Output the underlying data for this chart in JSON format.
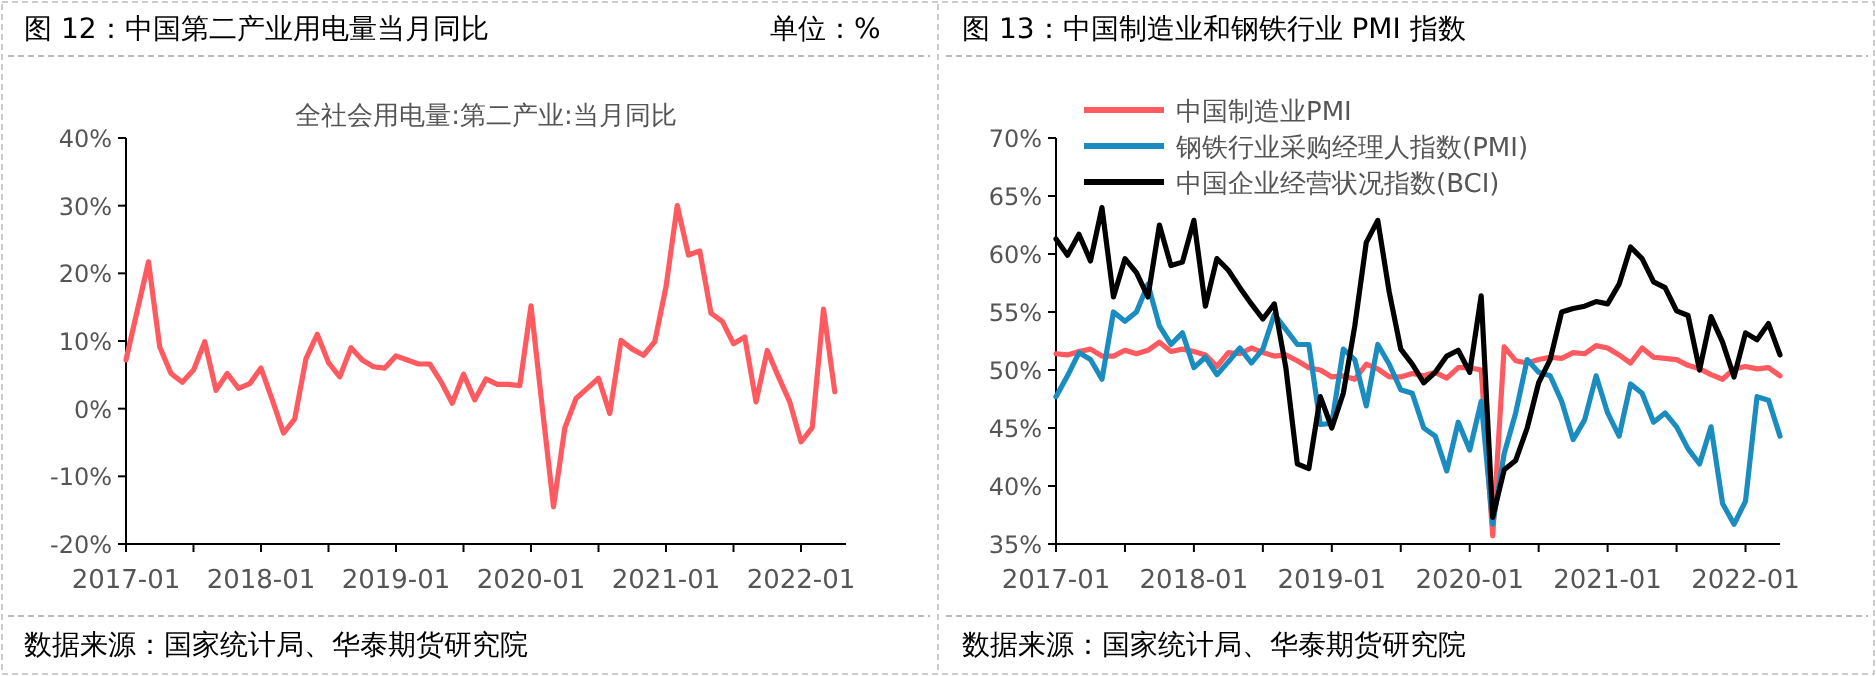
{
  "chart_data": [
    {
      "type": "line",
      "title": "图 12：中国第二产业用电量当月同比",
      "subtitle": "全社会用电量:第二产业:当月同比",
      "annotations": [
        "单位：%",
        "数据来源：国家统计局、华泰期货研究院"
      ],
      "x": [
        "2017-01",
        "2017-02",
        "2017-03",
        "2017-04",
        "2017-05",
        "2017-06",
        "2017-07",
        "2017-08",
        "2017-09",
        "2017-10",
        "2017-11",
        "2017-12",
        "2018-01",
        "2018-02",
        "2018-03",
        "2018-04",
        "2018-05",
        "2018-06",
        "2018-07",
        "2018-08",
        "2018-09",
        "2018-10",
        "2018-11",
        "2018-12",
        "2019-01",
        "2019-02",
        "2019-03",
        "2019-04",
        "2019-05",
        "2019-06",
        "2019-07",
        "2019-08",
        "2019-09",
        "2019-10",
        "2019-11",
        "2019-12",
        "2020-01",
        "2020-02",
        "2020-03",
        "2020-04",
        "2020-05",
        "2020-06",
        "2020-07",
        "2020-08",
        "2020-09",
        "2020-10",
        "2020-11",
        "2020-12",
        "2021-01",
        "2021-02",
        "2021-03",
        "2021-04",
        "2021-05",
        "2021-06",
        "2021-07",
        "2021-08",
        "2021-09",
        "2021-10",
        "2021-11",
        "2021-12",
        "2022-01",
        "2022-02",
        "2022-03",
        "2022-04"
      ],
      "series": [
        {
          "color": "#ff5a5f",
          "values": [
            7.2,
            14.5,
            21.7,
            9.1,
            5.2,
            3.9,
            5.7,
            9.9,
            2.7,
            5.2,
            3.0,
            3.7,
            6.0,
            1.3,
            -3.6,
            -1.5,
            7.4,
            11.0,
            6.8,
            4.7,
            9.0,
            7.2,
            6.2,
            6.0,
            7.8,
            7.2,
            6.6,
            6.6,
            4.0,
            0.8,
            5.1,
            1.3,
            4.4,
            3.6,
            3.6,
            3.4,
            15.2,
            0.2,
            -14.5,
            -2.9,
            1.5,
            3.0,
            4.5,
            -0.7,
            10.1,
            8.8,
            7.9,
            9.9,
            18.0,
            30.0,
            22.7,
            23.3,
            14.1,
            12.9,
            9.6,
            10.6,
            1.0,
            8.6,
            4.7,
            1.0,
            -4.9,
            -2.8,
            14.7,
            2.5
          ]
        }
      ],
      "xlim": [
        "2017-01",
        "2022-05"
      ],
      "xticks": [
        {
          "value": "2017-01",
          "label": "2017-01"
        },
        {
          "value": "2017-07",
          "label": null
        },
        {
          "value": "2018-01",
          "label": "2018-01"
        },
        {
          "value": "2018-07",
          "label": null
        },
        {
          "value": "2019-01",
          "label": "2019-01"
        },
        {
          "value": "2019-07",
          "label": null
        },
        {
          "value": "2020-01",
          "label": "2020-01"
        },
        {
          "value": "2020-07",
          "label": null
        },
        {
          "value": "2021-01",
          "label": "2021-01"
        },
        {
          "value": "2021-07",
          "label": null
        },
        {
          "value": "2022-01",
          "label": "2022-01"
        }
      ],
      "ylim": [
        -20,
        40
      ],
      "yticks": [
        {
          "value": -20,
          "label": "-20%"
        },
        {
          "value": -10,
          "label": "-10%"
        },
        {
          "value": 0,
          "label": "0%"
        },
        {
          "value": 10,
          "label": "10%"
        },
        {
          "value": 20,
          "label": "20%"
        },
        {
          "value": 30,
          "label": "30%"
        },
        {
          "value": 40,
          "label": "40%"
        }
      ],
      "grid": false,
      "legend": false
    },
    {
      "type": "line",
      "title": "图 13：中国制造业和钢铁行业 PMI 指数",
      "annotations": [
        "数据来源：国家统计局、华泰期货研究院"
      ],
      "x": [
        "2017-01",
        "2017-02",
        "2017-03",
        "2017-04",
        "2017-05",
        "2017-06",
        "2017-07",
        "2017-08",
        "2017-09",
        "2017-10",
        "2017-11",
        "2017-12",
        "2018-01",
        "2018-02",
        "2018-03",
        "2018-04",
        "2018-05",
        "2018-06",
        "2018-07",
        "2018-08",
        "2018-09",
        "2018-10",
        "2018-11",
        "2018-12",
        "2019-01",
        "2019-02",
        "2019-03",
        "2019-04",
        "2019-05",
        "2019-06",
        "2019-07",
        "2019-08",
        "2019-09",
        "2019-10",
        "2019-11",
        "2019-12",
        "2020-01",
        "2020-02",
        "2020-03",
        "2020-04",
        "2020-05",
        "2020-06",
        "2020-07",
        "2020-08",
        "2020-09",
        "2020-10",
        "2020-11",
        "2020-12",
        "2021-01",
        "2021-02",
        "2021-03",
        "2021-04",
        "2021-05",
        "2021-06",
        "2021-07",
        "2021-08",
        "2021-09",
        "2021-10",
        "2021-11",
        "2021-12",
        "2022-01",
        "2022-02",
        "2022-03",
        "2022-04"
      ],
      "series": [
        {
          "name": "中国制造业PMI",
          "color": "#ff5a5f",
          "values": [
            51.4,
            51.3,
            51.6,
            51.8,
            51.2,
            51.2,
            51.7,
            51.4,
            51.7,
            52.4,
            51.6,
            51.8,
            51.6,
            51.3,
            50.3,
            51.5,
            51.4,
            51.9,
            51.5,
            51.2,
            51.3,
            50.8,
            50.2,
            50.0,
            49.4,
            49.5,
            49.2,
            50.5,
            50.1,
            49.4,
            49.4,
            49.7,
            49.5,
            49.8,
            49.3,
            50.2,
            50.2,
            50.0,
            35.7,
            52.0,
            50.8,
            50.6,
            50.9,
            51.1,
            51.0,
            51.5,
            51.4,
            52.1,
            51.9,
            51.3,
            50.6,
            51.9,
            51.1,
            51.0,
            50.9,
            50.4,
            50.1,
            49.6,
            49.2,
            50.1,
            50.3,
            50.1,
            50.2,
            49.5
          ]
        },
        {
          "name": "钢铁行业采购经理人指数(PMI)",
          "color": "#1a8cbf",
          "values": [
            47.7,
            49.5,
            51.5,
            50.9,
            49.2,
            55.0,
            54.2,
            55.0,
            57.4,
            53.8,
            52.2,
            53.2,
            50.2,
            51.1,
            49.6,
            50.7,
            51.9,
            50.6,
            51.8,
            54.8,
            53.5,
            52.2,
            52.2,
            45.3,
            45.4,
            51.8,
            50.9,
            46.9,
            52.2,
            50.5,
            48.3,
            48.0,
            45.0,
            44.3,
            41.3,
            45.5,
            43.1,
            47.3,
            36.7,
            42.8,
            46.3,
            50.9,
            49.8,
            49.5,
            47.3,
            44.0,
            45.7,
            49.5,
            46.3,
            44.3,
            48.8,
            48.0,
            45.5,
            46.3,
            45.1,
            43.2,
            41.9,
            45.1,
            38.5,
            36.7,
            38.7,
            47.7,
            47.4,
            44.3
          ]
        },
        {
          "name": "中国企业经营状况指数(BCI)",
          "color": "#000000",
          "values": [
            61.3,
            59.9,
            61.7,
            59.4,
            64.0,
            56.3,
            59.6,
            58.4,
            56.3,
            62.5,
            59.0,
            59.3,
            62.9,
            55.5,
            59.6,
            58.6,
            57.1,
            55.7,
            54.4,
            55.7,
            50.2,
            41.9,
            41.5,
            47.7,
            45.0,
            48.0,
            53.8,
            61.0,
            62.9,
            56.7,
            51.8,
            50.5,
            48.9,
            49.8,
            51.2,
            51.7,
            49.8,
            56.4,
            37.3,
            41.4,
            42.2,
            45.0,
            48.9,
            50.9,
            55.0,
            55.3,
            55.5,
            55.9,
            55.7,
            57.4,
            60.6,
            59.6,
            57.6,
            57.1,
            55.1,
            54.7,
            50.0,
            54.6,
            52.4,
            49.4,
            53.2,
            52.6,
            54.0,
            51.3
          ]
        }
      ],
      "xlim": [
        "2017-01",
        "2022-04"
      ],
      "xticks": [
        {
          "value": "2017-01",
          "label": "2017-01"
        },
        {
          "value": "2017-07",
          "label": null
        },
        {
          "value": "2018-01",
          "label": "2018-01"
        },
        {
          "value": "2018-07",
          "label": null
        },
        {
          "value": "2019-01",
          "label": "2019-01"
        },
        {
          "value": "2019-07",
          "label": null
        },
        {
          "value": "2020-01",
          "label": "2020-01"
        },
        {
          "value": "2020-07",
          "label": null
        },
        {
          "value": "2021-01",
          "label": "2021-01"
        },
        {
          "value": "2021-07",
          "label": null
        },
        {
          "value": "2022-01",
          "label": "2022-01"
        }
      ],
      "ylim": [
        35,
        70
      ],
      "yticks": [
        {
          "value": 35,
          "label": "35%"
        },
        {
          "value": 40,
          "label": "40%"
        },
        {
          "value": 45,
          "label": "45%"
        },
        {
          "value": 50,
          "label": "50%"
        },
        {
          "value": 55,
          "label": "55%"
        },
        {
          "value": 60,
          "label": "60%"
        },
        {
          "value": 65,
          "label": "65%"
        },
        {
          "value": 70,
          "label": "70%"
        }
      ],
      "grid": false,
      "legend": "top left"
    }
  ]
}
